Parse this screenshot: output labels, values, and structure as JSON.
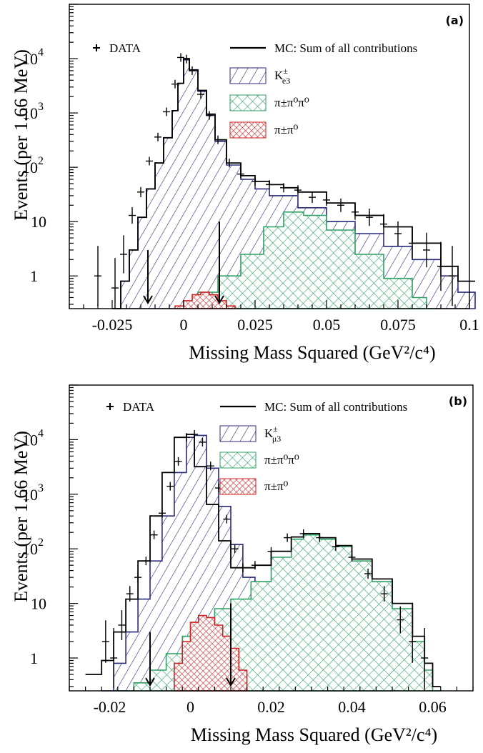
{
  "chart_data": [
    {
      "panel": "(a)",
      "type": "histogram",
      "xlabel": "Missing Mass Squared  (GeV²/c⁴)",
      "ylabel": "Events (per 1.66 MeV)",
      "xlim": [
        -0.04,
        0.1
      ],
      "ylim": [
        0.25,
        100000
      ],
      "log_y": true,
      "grid": false,
      "legend_placement": "top-right",
      "x_ticks": [
        {
          "value": -0.025,
          "label": "-0.025"
        },
        {
          "value": 0,
          "label": "0"
        },
        {
          "value": 0.025,
          "label": "0.025"
        },
        {
          "value": 0.05,
          "label": "0.05"
        },
        {
          "value": 0.075,
          "label": "0.075"
        },
        {
          "value": 0.1,
          "label": "0.1"
        }
      ],
      "y_ticks": [
        {
          "value": 1,
          "base": "1",
          "exp": ""
        },
        {
          "value": 10,
          "base": "10",
          "exp": ""
        },
        {
          "value": 100,
          "base": "10",
          "exp": "2"
        },
        {
          "value": 1000,
          "base": "10",
          "exp": "3"
        },
        {
          "value": 10000,
          "base": "10",
          "exp": "4"
        }
      ],
      "legend": {
        "data": "DATA",
        "mc": "MC: Sum of all contributions",
        "ke3": {
          "base": "K",
          "sup": "±",
          "sub": "e3"
        },
        "p3": "π±π⁰π⁰",
        "p2": "π±π⁰"
      },
      "cuts": [
        -0.0125,
        0.0125
      ],
      "series": [
        {
          "name": "K±e3",
          "color": "#2a2a7a",
          "hatch": "diagonal",
          "x": [
            -0.025,
            -0.022,
            -0.019,
            -0.016,
            -0.013,
            -0.01,
            -0.007,
            -0.004,
            -0.002,
            0,
            0.002,
            0.005,
            0.008,
            0.011,
            0.015,
            0.02,
            0.025,
            0.03,
            0.04,
            0.05,
            0.06,
            0.07,
            0.08,
            0.09,
            0.096
          ],
          "y": [
            0.25,
            0.8,
            3,
            12,
            40,
            120,
            350,
            1100,
            3500,
            9500,
            6000,
            2500,
            900,
            300,
            110,
            60,
            40,
            30,
            18,
            10,
            6,
            3.5,
            2,
            1,
            0.5
          ]
        },
        {
          "name": "π±π⁰π⁰",
          "color": "#2ea064",
          "hatch": "crosshatch",
          "x": [
            -0.002,
            0.005,
            0.012,
            0.02,
            0.028,
            0.035,
            0.042,
            0.05,
            0.06,
            0.07,
            0.08,
            0.085
          ],
          "y": [
            0.25,
            0.5,
            1.0,
            2.5,
            8,
            15,
            13,
            7,
            2.5,
            0.9,
            0.4,
            0.25
          ]
        },
        {
          "name": "π±π⁰",
          "color": "#cc2222",
          "hatch": "crosshatch",
          "x": [
            -0.003,
            0.0,
            0.003,
            0.006,
            0.009,
            0.012,
            0.015
          ],
          "y": [
            0.28,
            0.35,
            0.45,
            0.5,
            0.45,
            0.35,
            0.28
          ]
        },
        {
          "name": "MC: Sum of all contributions",
          "color": "#000000",
          "x": [
            -0.025,
            -0.022,
            -0.019,
            -0.016,
            -0.013,
            -0.01,
            -0.007,
            -0.004,
            -0.002,
            0,
            0.002,
            0.005,
            0.008,
            0.011,
            0.015,
            0.02,
            0.025,
            0.03,
            0.035,
            0.04,
            0.05,
            0.06,
            0.07,
            0.08,
            0.09,
            0.096
          ],
          "y": [
            0.25,
            0.8,
            3,
            12,
            40,
            120,
            350,
            1100,
            3500,
            10000,
            6200,
            2600,
            950,
            320,
            120,
            70,
            55,
            48,
            42,
            35,
            22,
            13,
            8,
            4,
            1.5,
            0.8
          ]
        },
        {
          "name": "DATA",
          "color": "#000000",
          "marker": "cross",
          "x": [
            -0.03,
            -0.024,
            -0.021,
            -0.018,
            -0.015,
            -0.012,
            -0.009,
            -0.006,
            -0.003,
            -0.001,
            0.001,
            0.003,
            0.006,
            0.009,
            0.012,
            0.016,
            0.02,
            0.025,
            0.03,
            0.035,
            0.04,
            0.045,
            0.05,
            0.055,
            0.06,
            0.065,
            0.07,
            0.075,
            0.08,
            0.085,
            0.09,
            0.094
          ],
          "y": [
            1,
            0.6,
            2.5,
            13,
            35,
            130,
            360,
            1050,
            3400,
            10500,
            9800,
            6000,
            2200,
            900,
            320,
            120,
            75,
            55,
            48,
            42,
            38,
            28,
            25,
            20,
            15,
            12,
            9,
            6,
            4,
            3,
            1.5,
            1
          ]
        }
      ]
    },
    {
      "panel": "(b)",
      "type": "histogram",
      "xlabel": "Missing Mass Squared  (GeV²/c⁴)",
      "ylabel": "Events (per 1.66 MeV)",
      "xlim": [
        -0.03,
        0.07
      ],
      "ylim": [
        0.25,
        100000
      ],
      "log_y": true,
      "grid": false,
      "legend_placement": "top",
      "x_ticks": [
        {
          "value": -0.02,
          "label": "-0.02"
        },
        {
          "value": 0,
          "label": "0"
        },
        {
          "value": 0.02,
          "label": "0.02"
        },
        {
          "value": 0.04,
          "label": "0.04"
        },
        {
          "value": 0.06,
          "label": "0.06"
        }
      ],
      "y_ticks": [
        {
          "value": 1,
          "base": "1",
          "exp": ""
        },
        {
          "value": 10,
          "base": "10",
          "exp": ""
        },
        {
          "value": 100,
          "base": "10",
          "exp": "2"
        },
        {
          "value": 1000,
          "base": "10",
          "exp": "3"
        },
        {
          "value": 10000,
          "base": "10",
          "exp": "4"
        }
      ],
      "legend": {
        "data": "DATA",
        "mc": "MC: Sum of all contributions",
        "km3": {
          "base": "K",
          "sup": "±",
          "sub": "μ3"
        },
        "p3": "π±π⁰π⁰",
        "p2": "π±π⁰"
      },
      "cuts": [
        -0.01,
        0.01
      ],
      "series": [
        {
          "name": "K±μ3",
          "color": "#2a2a7a",
          "hatch": "diagonal",
          "x": [
            -0.022,
            -0.019,
            -0.016,
            -0.013,
            -0.01,
            -0.007,
            -0.004,
            -0.001,
            0.001,
            0.004,
            0.007,
            0.01,
            0.013,
            0.016,
            0.02,
            0.025,
            0.03,
            0.035,
            0.04,
            0.045
          ],
          "y": [
            0.25,
            0.8,
            3,
            12,
            60,
            400,
            2500,
            11000,
            12000,
            3000,
            600,
            120,
            30,
            10,
            5,
            3,
            2,
            1.2,
            0.6,
            0.3
          ]
        },
        {
          "name": "π±π⁰π⁰",
          "color": "#2ea064",
          "hatch": "crosshatch",
          "x": [
            -0.018,
            -0.014,
            -0.01,
            -0.006,
            -0.002,
            0.002,
            0.006,
            0.01,
            0.015,
            0.02,
            0.025,
            0.028,
            0.032,
            0.036,
            0.04,
            0.045,
            0.05,
            0.055,
            0.058,
            0.06
          ],
          "y": [
            0.25,
            0.35,
            0.6,
            1.2,
            2.5,
            5,
            8,
            12,
            25,
            70,
            150,
            180,
            150,
            110,
            60,
            25,
            8,
            2,
            0.6,
            0.25
          ]
        },
        {
          "name": "π±π⁰",
          "color": "#cc2222",
          "hatch": "crosshatch",
          "x": [
            -0.004,
            -0.002,
            0,
            0.002,
            0.004,
            0.006,
            0.008,
            0.01,
            0.012
          ],
          "y": [
            0.8,
            2,
            4.5,
            6,
            5.5,
            4,
            2.5,
            1.5,
            0.6
          ]
        },
        {
          "name": "MC: Sum of all contributions",
          "color": "#000000",
          "x": [
            -0.026,
            -0.022,
            -0.019,
            -0.016,
            -0.013,
            -0.01,
            -0.007,
            -0.004,
            -0.001,
            0.001,
            0.004,
            0.007,
            0.01,
            0.013,
            0.016,
            0.02,
            0.025,
            0.028,
            0.032,
            0.036,
            0.04,
            0.045,
            0.05,
            0.055,
            0.058,
            0.06
          ],
          "y": [
            0.5,
            0.9,
            3,
            12,
            60,
            400,
            2500,
            11000,
            12500,
            3200,
            650,
            140,
            45,
            45,
            50,
            90,
            165,
            190,
            160,
            115,
            65,
            28,
            10,
            2.5,
            0.8,
            0.3
          ]
        },
        {
          "name": "DATA",
          "color": "#000000",
          "marker": "cross",
          "x": [
            -0.021,
            -0.019,
            -0.017,
            -0.015,
            -0.013,
            -0.011,
            -0.009,
            -0.007,
            -0.005,
            -0.003,
            -0.001,
            0.001,
            0.003,
            0.005,
            0.007,
            0.009,
            0.011,
            0.013,
            0.016,
            0.02,
            0.024,
            0.028,
            0.032,
            0.036,
            0.04,
            0.044,
            0.048,
            0.052,
            0.055,
            0.058
          ],
          "y": [
            2,
            1,
            4,
            15,
            30,
            60,
            180,
            450,
            1400,
            4000,
            11000,
            12500,
            9000,
            3300,
            1300,
            350,
            100,
            45,
            50,
            90,
            160,
            190,
            160,
            110,
            70,
            35,
            15,
            5,
            2,
            1
          ]
        }
      ]
    }
  ]
}
